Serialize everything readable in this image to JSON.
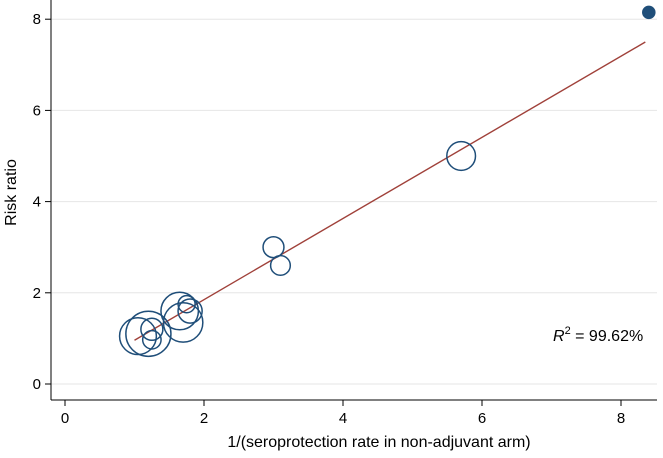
{
  "chart_data": {
    "type": "scatter",
    "xlabel": "1/(seroprotection rate in non-adjuvant arm)",
    "ylabel": "Risk ratio",
    "xlim": [
      0,
      8.5
    ],
    "ylim": [
      0,
      8.2
    ],
    "x_ticks": [
      "0",
      "2",
      "4",
      "6",
      "8"
    ],
    "y_ticks": [
      "0",
      "2",
      "4",
      "6",
      "8"
    ],
    "grid": "horizontal",
    "points": [
      {
        "x": 8.4,
        "y": 8.15,
        "weight": 0.3
      },
      {
        "x": 5.7,
        "y": 5.0,
        "weight": 1.7
      },
      {
        "x": 3.0,
        "y": 3.0,
        "weight": 0.9
      },
      {
        "x": 3.1,
        "y": 2.6,
        "weight": 0.8
      },
      {
        "x": 1.75,
        "y": 1.75,
        "weight": 0.6
      },
      {
        "x": 1.65,
        "y": 1.6,
        "weight": 2.9
      },
      {
        "x": 1.8,
        "y": 1.6,
        "weight": 1.2
      },
      {
        "x": 1.7,
        "y": 1.35,
        "weight": 3.2
      },
      {
        "x": 1.25,
        "y": 1.2,
        "weight": 1.0
      },
      {
        "x": 1.2,
        "y": 1.1,
        "weight": 4.2
      },
      {
        "x": 1.05,
        "y": 1.05,
        "weight": 2.8
      },
      {
        "x": 1.25,
        "y": 0.97,
        "weight": 0.7
      }
    ],
    "fit_line": {
      "x": [
        1.0,
        8.35
      ],
      "y": [
        0.96,
        7.5
      ]
    },
    "colors": {
      "marker": "#1f4e79",
      "fit_line": "#a0413a",
      "grid": "#e6e6e6",
      "axis": "#000000"
    },
    "annotation": {
      "r2_symbol": "R",
      "r2_superscript": "2",
      "r2_text": " = 99.62%"
    }
  }
}
